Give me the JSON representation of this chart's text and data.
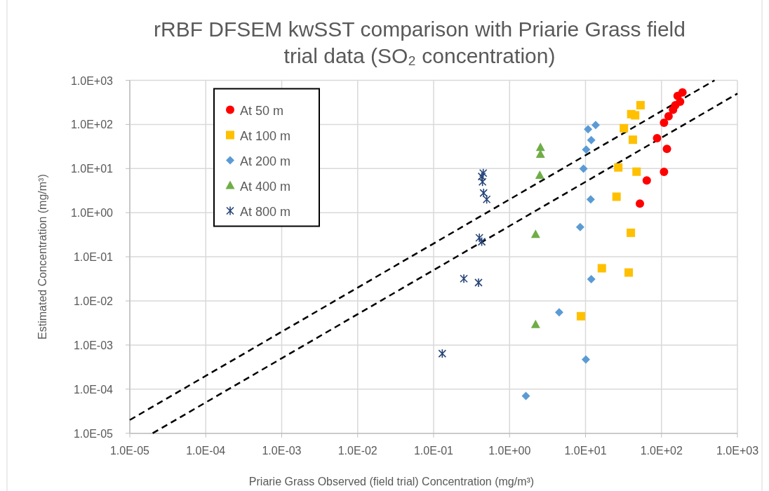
{
  "chart_data": {
    "type": "scatter",
    "title": "rRBF DFSEM kwSST comparison with Priarie Grass field trial data (SO₂ concentration)",
    "xlabel": "Priarie Grass Observed (field trial) Concentration (mg/m³)",
    "ylabel": "Estimated Concentration (mg/m³)",
    "log": "xy",
    "grid": true,
    "legend": "top left",
    "xlim": [
      1e-05,
      1000
    ],
    "ylim": [
      1e-05,
      1000
    ],
    "xticks": [
      {
        "value": 1e-05,
        "label": "1.0E-05"
      },
      {
        "value": 0.0001,
        "label": "1.0E-04"
      },
      {
        "value": 0.001,
        "label": "1.0E-03"
      },
      {
        "value": 0.01,
        "label": "1.0E-02"
      },
      {
        "value": 0.1,
        "label": "1.0E-01"
      },
      {
        "value": 1,
        "label": "1.0E+00"
      },
      {
        "value": 10,
        "label": "1.0E+01"
      },
      {
        "value": 100,
        "label": "1.0E+02"
      },
      {
        "value": 1000,
        "label": "1.0E+03"
      }
    ],
    "yticks": [
      {
        "value": 1e-05,
        "label": "1.0E-05"
      },
      {
        "value": 0.0001,
        "label": "1.0E-04"
      },
      {
        "value": 0.001,
        "label": "1.0E-03"
      },
      {
        "value": 0.01,
        "label": "1.0E-02"
      },
      {
        "value": 0.1,
        "label": "1.0E-01"
      },
      {
        "value": 1,
        "label": "1.0E+00"
      },
      {
        "value": 10,
        "label": "1.0E+01"
      },
      {
        "value": 100,
        "label": "1.0E+02"
      },
      {
        "value": 1000,
        "label": "1.0E+03"
      }
    ],
    "series": [
      {
        "type": "line",
        "line_style": "dashed",
        "marker": "none",
        "color": "#000000",
        "x": [
          1e-05,
          500
        ],
        "values": [
          2e-05,
          1000
        ]
      },
      {
        "type": "line",
        "line_style": "dashed",
        "marker": "none",
        "color": "#000000",
        "x": [
          2e-05,
          1000
        ],
        "values": [
          1e-05,
          500
        ]
      },
      {
        "name": "At 50 m",
        "marker": "circle",
        "color": "#ff0000",
        "x": [
          189,
          163,
          176,
          152,
          142,
          124,
          108,
          87.5,
          118,
          108,
          64,
          52
        ],
        "values": [
          533,
          444,
          327,
          273,
          214,
          153,
          109,
          49,
          28,
          8.4,
          5.4,
          1.6
        ]
      },
      {
        "name": "At 100 m",
        "marker": "square",
        "color": "#ffc000",
        "x": [
          53,
          40,
          45,
          32,
          42,
          27,
          47,
          25.6,
          39.5,
          16.4,
          37,
          8.7
        ],
        "values": [
          273,
          171,
          161,
          82,
          45,
          10.6,
          8.5,
          2.3,
          0.35,
          0.055,
          0.044,
          0.0045
        ]
      },
      {
        "name": "At 200 m",
        "marker": "diamond",
        "color": "#5b9bd5",
        "x": [
          13.6,
          10.8,
          11.9,
          10.2,
          9.4,
          11.7,
          8.5,
          11.9,
          4.5,
          10.1,
          1.64
        ],
        "values": [
          97,
          78,
          44,
          27,
          9.9,
          2.0,
          0.47,
          0.031,
          0.0055,
          0.00047,
          7e-05
        ]
      },
      {
        "name": "At 400 m",
        "marker": "triangle",
        "color": "#70ad47",
        "x": [
          2.55,
          2.55,
          2.5,
          2.2,
          2.2
        ],
        "values": [
          30,
          21,
          7.0,
          0.32,
          0.0029
        ]
      },
      {
        "name": "At 800 m",
        "marker": "cross",
        "color": "#264478",
        "x": [
          0.45,
          0.43,
          0.44,
          0.455,
          0.5,
          0.4,
          0.43,
          0.25,
          0.39,
          0.13
        ],
        "values": [
          7.9,
          6.6,
          5.0,
          2.8,
          2.0,
          0.27,
          0.22,
          0.032,
          0.026,
          0.00064
        ]
      }
    ]
  }
}
